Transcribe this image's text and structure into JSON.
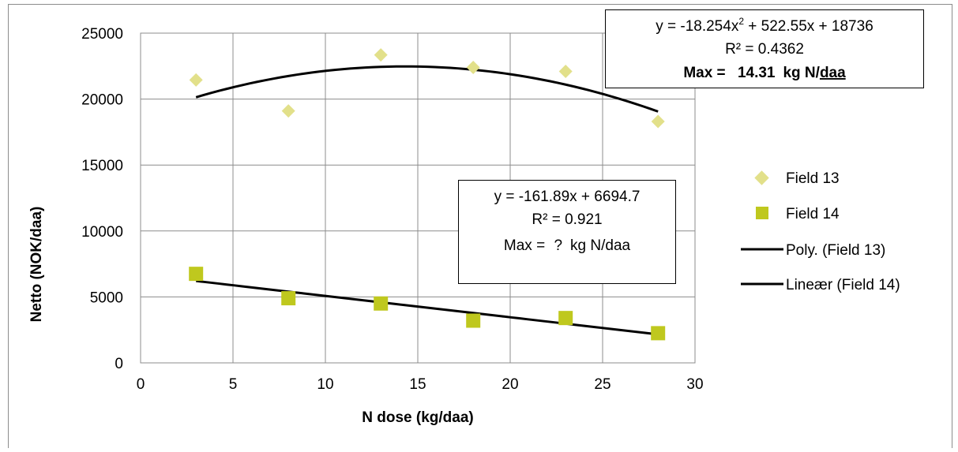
{
  "chart_data": {
    "type": "scatter",
    "xlabel": "N dose (kg/daa)",
    "ylabel": "Netto (NOK/daa)",
    "xlim": [
      0,
      30
    ],
    "ylim": [
      0,
      25000
    ],
    "x_ticks": [
      "0",
      "5",
      "10",
      "15",
      "20",
      "25",
      "30"
    ],
    "y_ticks": [
      "0",
      "5000",
      "10000",
      "15000",
      "20000",
      "25000"
    ],
    "grid": true,
    "legend_position": "right",
    "series": [
      {
        "name": "Field 13",
        "marker": "diamond",
        "color": "#E2E08A",
        "x": [
          3,
          8,
          13,
          18,
          23,
          28
        ],
        "y": [
          21450,
          19100,
          23350,
          22400,
          22100,
          18300
        ]
      },
      {
        "name": "Field 14",
        "marker": "square",
        "color": "#BFC81E",
        "x": [
          3,
          8,
          13,
          18,
          23,
          28
        ],
        "y": [
          6750,
          4900,
          4500,
          3200,
          3400,
          2250
        ]
      }
    ],
    "trendlines": [
      {
        "name": "Poly. (Field 13)",
        "kind": "polynomial",
        "coefficients": [
          -18.254,
          522.55,
          18736
        ],
        "x_range": [
          3,
          28
        ],
        "color": "#000000"
      },
      {
        "name": "Lineær (Field 14)",
        "kind": "linear",
        "coefficients": [
          -161.89,
          6694.7
        ],
        "x_range": [
          3,
          28
        ],
        "color": "#000000"
      }
    ],
    "annotations": {
      "field13": {
        "equation_prefix": "y = -18.254x",
        "equation_sup": "2",
        "equation_suffix": " + 522.55x + 18736",
        "r2": "R² = 0.4362",
        "max_label": "Max = ",
        "max_value": "14.31",
        "max_unit": "kg N/",
        "max_unit_tail": "daa"
      },
      "field14": {
        "equation": "y = -161.89x + 6694.7",
        "r2": "R² = 0.921",
        "max_label": "Max = ",
        "max_value": "?",
        "max_unit": "kg N/",
        "max_unit_tail": "daa"
      }
    }
  }
}
